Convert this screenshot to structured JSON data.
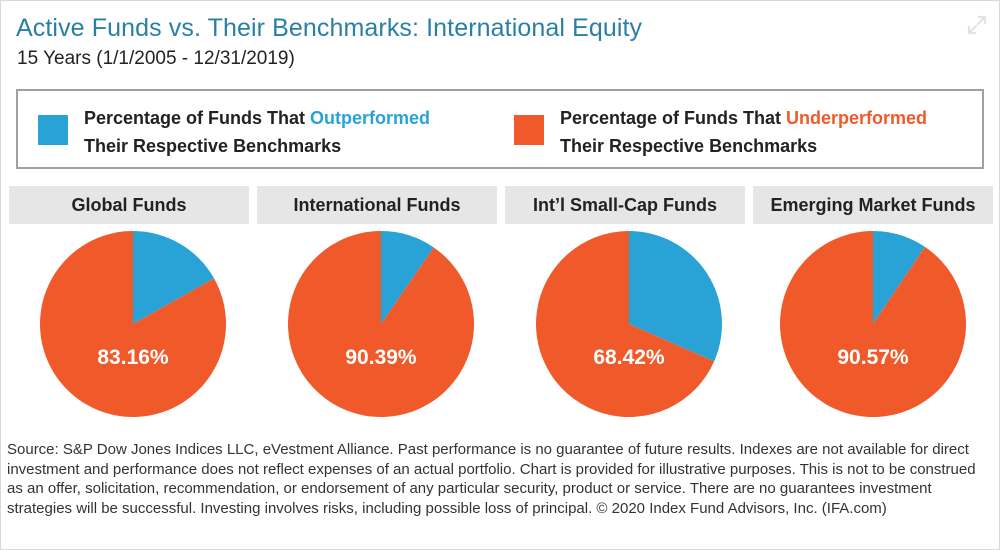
{
  "header": {
    "title": "Active Funds vs. Their Benchmarks: International Equity",
    "subtitle": "15 Years (1/1/2005 - 12/31/2019)"
  },
  "legend": {
    "outperformed": {
      "prefix": "Percentage of Funds That ",
      "highlight": "Outperformed",
      "line2": "Their Respective Benchmarks",
      "color": "#29a3d6"
    },
    "underperformed": {
      "prefix": "Percentage of Funds That ",
      "highlight": "Underperformed",
      "line2": "Their Respective Benchmarks",
      "color": "#f05a2b"
    }
  },
  "chart_data": {
    "type": "pie",
    "title": "Active Funds vs. Their Benchmarks: International Equity",
    "subtitle": "15 Years (1/1/2005 - 12/31/2019)",
    "series_names": [
      "Outperformed",
      "Underperformed"
    ],
    "colors": {
      "outperformed": "#29a3d6",
      "underperformed": "#f05a2b"
    },
    "charts": [
      {
        "category": "Global Funds",
        "underperformed": 83.16,
        "outperformed": 16.84,
        "label": "83.16%"
      },
      {
        "category": "International Funds",
        "underperformed": 90.39,
        "outperformed": 9.61,
        "label": "90.39%"
      },
      {
        "category": "Int’l Small-Cap Funds",
        "underperformed": 68.42,
        "outperformed": 31.58,
        "label": "68.42%"
      },
      {
        "category": "Emerging Market Funds",
        "underperformed": 90.57,
        "outperformed": 9.43,
        "label": "90.57%"
      }
    ]
  },
  "footer": {
    "source": "Source: S&P Dow Jones Indices LLC, eVestment Alliance. Past performance is no guarantee of future results. Indexes are not available for direct investment and performance does not reflect expenses of an actual portfolio. Chart is provided for illustrative purposes. This is not to be construed as an offer, solicitation, recommendation, or endorsement of any particular security, product or service. There are no guarantees investment strategies will be successful. Investing involves risks, including possible loss of principal. © 2020 Index Fund Advisors, Inc. (IFA.com)"
  },
  "icons": {
    "expand": "expand-icon"
  }
}
